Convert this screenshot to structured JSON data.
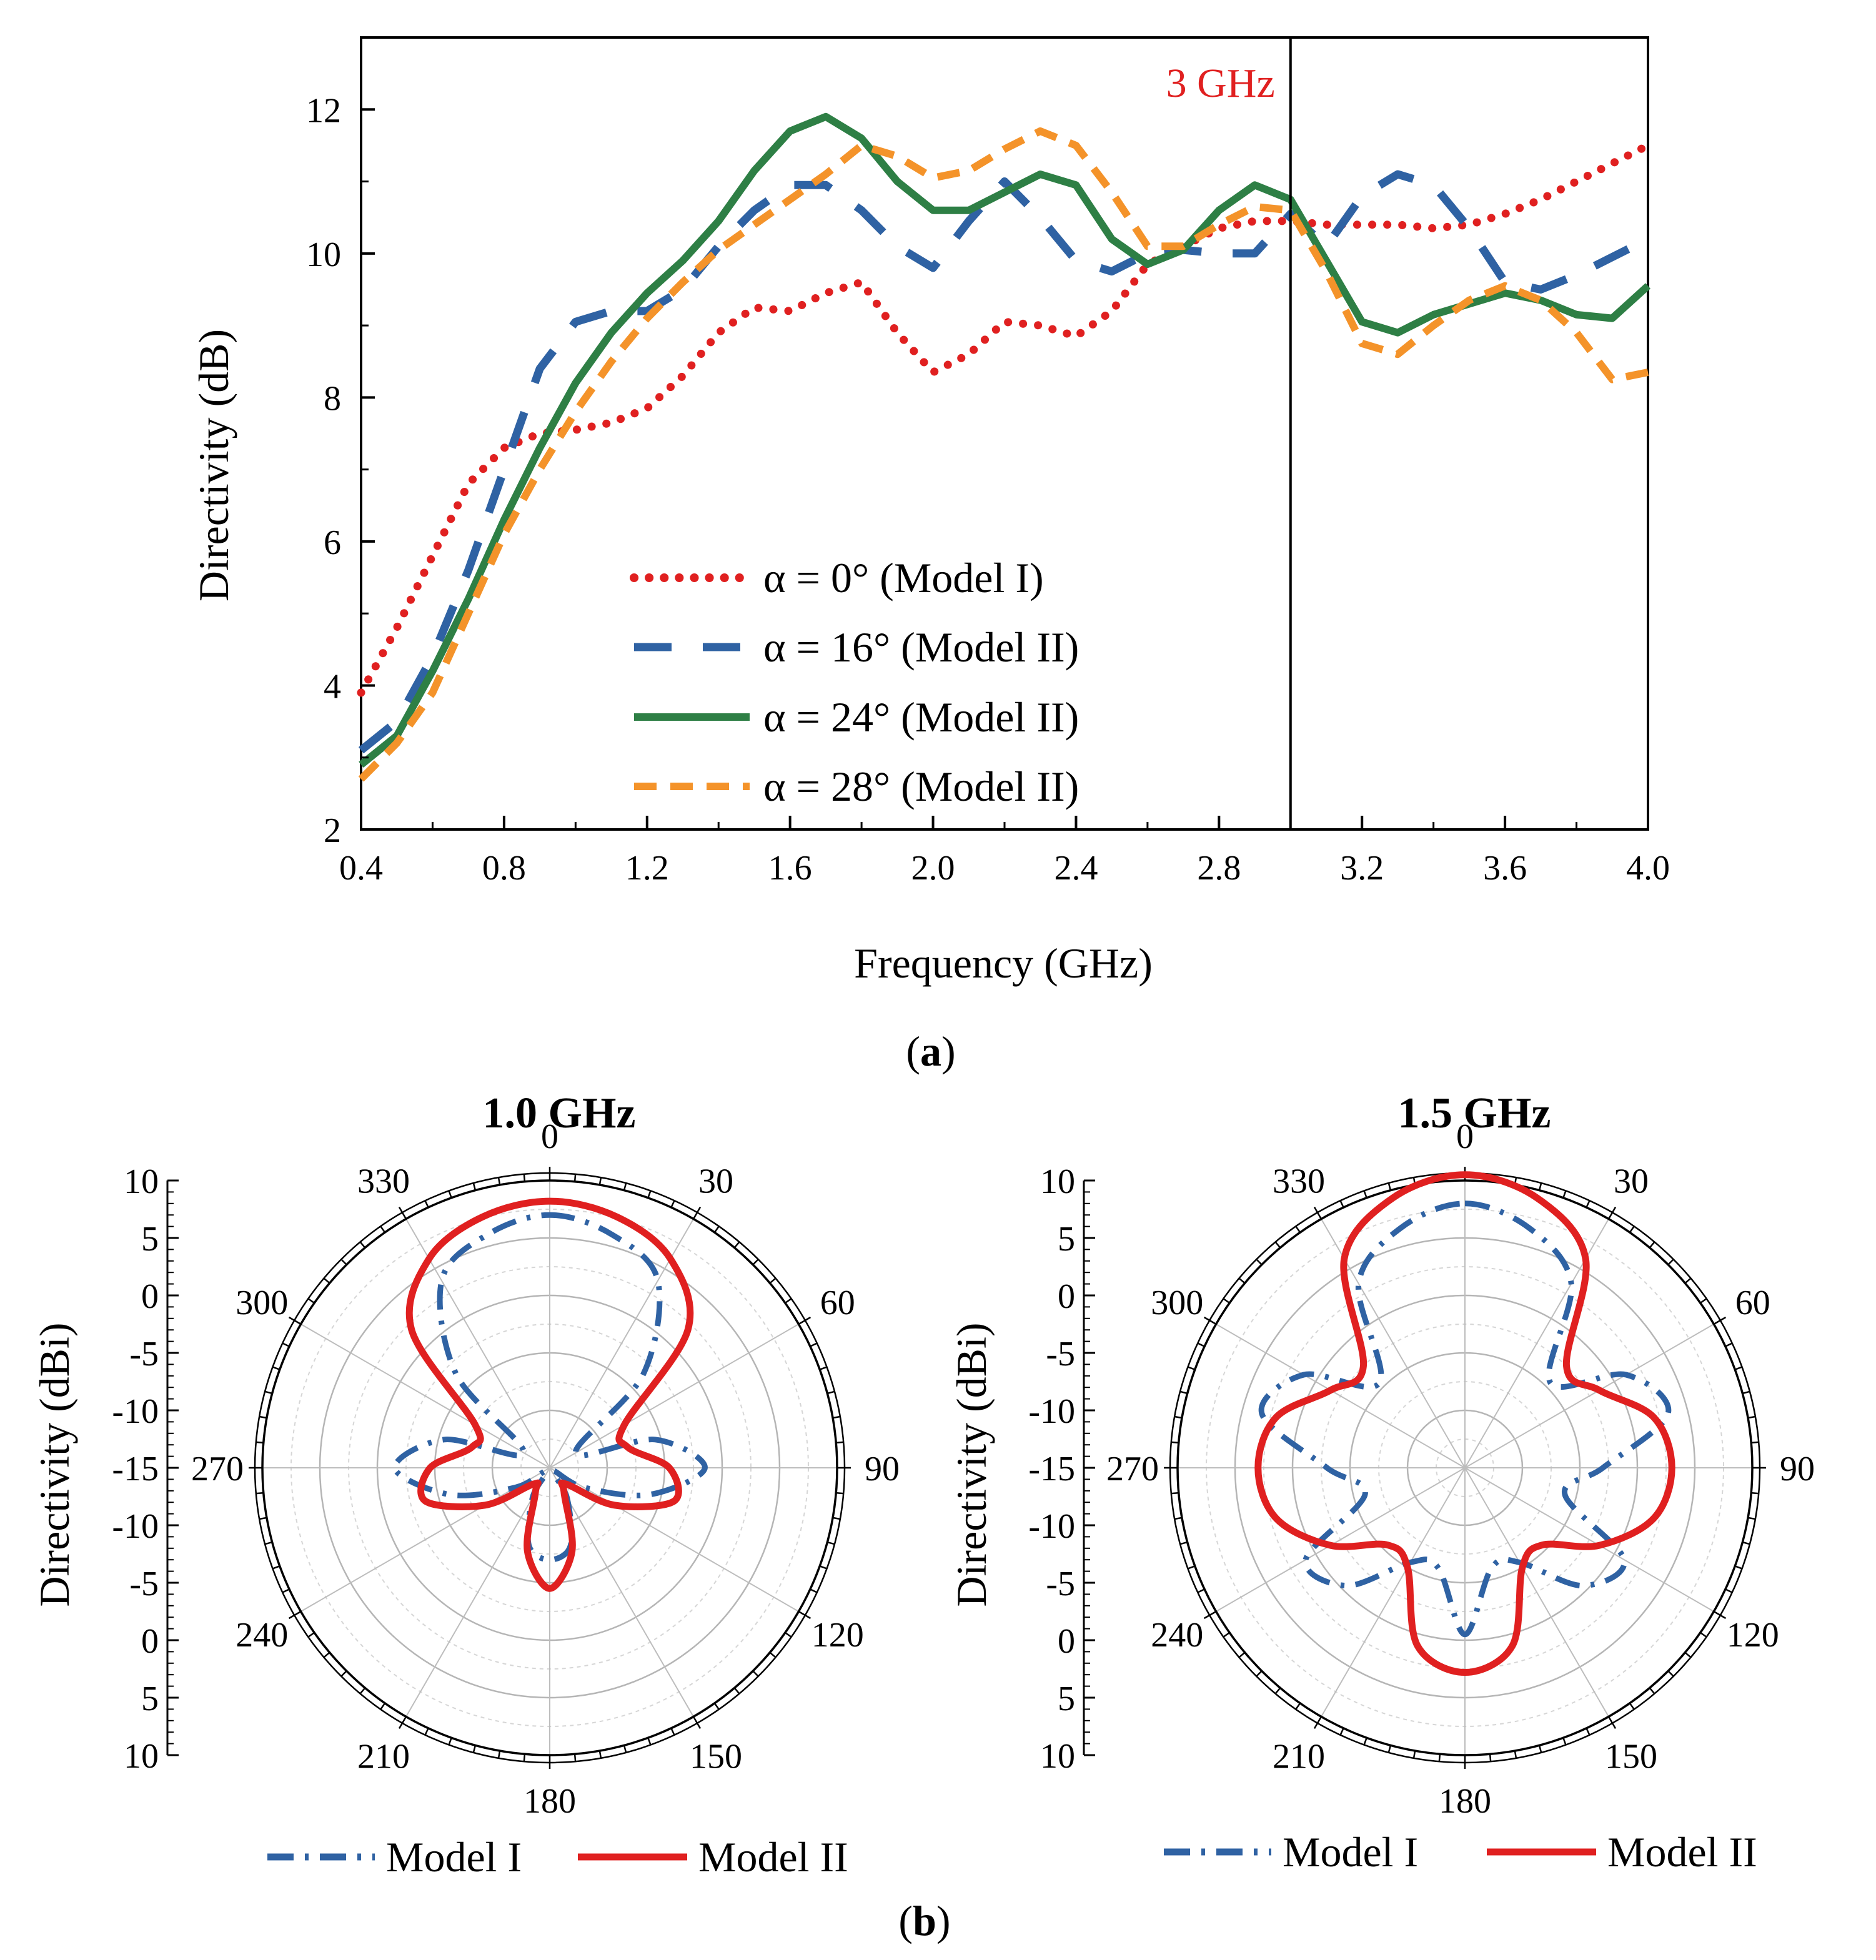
{
  "colors": {
    "red": "#e02020",
    "blue": "#2f62a3",
    "green": "#2e7f45",
    "orange": "#f4932a",
    "axis": "#000000",
    "grid": "#bbbbbb"
  },
  "captions": {
    "a": "a",
    "b": "b"
  },
  "chart_data": [
    {
      "type": "line",
      "id": "a",
      "xlabel": "Frequency (GHz)",
      "ylabel": "Directivity (dB)",
      "xlim": [
        0.4,
        4.0
      ],
      "ylim": [
        2,
        13
      ],
      "xticks": [
        "0.4",
        "0.8",
        "1.2",
        "1.6",
        "2.0",
        "2.4",
        "2.8",
        "3.2",
        "3.6",
        "4.0"
      ],
      "yticks": [
        "2",
        "4",
        "6",
        "8",
        "10",
        "12"
      ],
      "annotation": {
        "label": "3 GHz",
        "x": 3.0
      },
      "x": [
        0.4,
        0.5,
        0.6,
        0.7,
        0.8,
        0.9,
        1.0,
        1.1,
        1.2,
        1.3,
        1.4,
        1.5,
        1.6,
        1.7,
        1.8,
        1.9,
        2.0,
        2.1,
        2.2,
        2.3,
        2.4,
        2.5,
        2.6,
        2.7,
        2.8,
        2.9,
        3.0,
        3.1,
        3.2,
        3.3,
        3.4,
        3.5,
        3.6,
        3.7,
        3.8,
        3.9,
        4.0
      ],
      "series": [
        {
          "name": "α = 0° (Model I)",
          "color": "red",
          "dash": "dot",
          "values": [
            3.9,
            4.8,
            5.8,
            6.8,
            7.3,
            7.5,
            7.55,
            7.65,
            7.85,
            8.3,
            8.9,
            9.25,
            9.2,
            9.45,
            9.6,
            8.9,
            8.35,
            8.6,
            9.05,
            9.0,
            8.85,
            9.2,
            9.85,
            10.1,
            10.35,
            10.45,
            10.45,
            10.4,
            10.4,
            10.4,
            10.35,
            10.4,
            10.55,
            10.75,
            11.0,
            11.25,
            11.5
          ]
        },
        {
          "name": "α = 16° (Model II)",
          "color": "blue",
          "dash": "dash",
          "values": [
            3.1,
            3.5,
            4.4,
            5.6,
            7.0,
            8.4,
            9.05,
            9.2,
            9.2,
            9.5,
            10.1,
            10.6,
            10.95,
            10.95,
            10.6,
            10.1,
            9.8,
            10.45,
            11.0,
            10.5,
            9.9,
            9.75,
            10.0,
            10.05,
            10.0,
            10.0,
            10.55,
            10.1,
            10.8,
            11.1,
            10.95,
            10.35,
            9.6,
            9.5,
            9.7,
            9.95,
            10.2
          ]
        },
        {
          "name": "α = 24° (Model II)",
          "color": "green",
          "dash": "solid",
          "values": [
            2.9,
            3.3,
            4.2,
            5.2,
            6.3,
            7.3,
            8.2,
            8.9,
            9.45,
            9.9,
            10.45,
            11.15,
            11.7,
            11.9,
            11.6,
            11.0,
            10.6,
            10.6,
            10.85,
            11.1,
            10.95,
            10.2,
            9.85,
            10.05,
            10.6,
            10.95,
            10.75,
            9.9,
            9.05,
            8.9,
            9.15,
            9.3,
            9.45,
            9.35,
            9.15,
            9.1,
            9.55
          ]
        },
        {
          "name": "α = 28° (Model II)",
          "color": "orange",
          "dash": "dash",
          "values": [
            2.7,
            3.2,
            3.9,
            5.0,
            6.1,
            7.0,
            7.8,
            8.5,
            9.1,
            9.6,
            10.05,
            10.4,
            10.75,
            11.1,
            11.5,
            11.35,
            11.05,
            11.15,
            11.45,
            11.7,
            11.5,
            10.85,
            10.1,
            10.1,
            10.4,
            10.65,
            10.6,
            9.75,
            8.75,
            8.6,
            9.0,
            9.35,
            9.55,
            9.35,
            8.9,
            8.25,
            8.35
          ]
        }
      ]
    },
    {
      "type": "polar",
      "id": "b-left",
      "title": "1.0 GHz",
      "rlabel": "Directivity (dBi)",
      "rlim": [
        -15,
        10
      ],
      "rticks": [
        "10",
        "5",
        "0",
        "-5",
        "-10",
        "-15"
      ],
      "angles_labels": [
        "0",
        "30",
        "60",
        "90",
        "120",
        "150",
        "180",
        "210",
        "240",
        "270",
        "300",
        "330"
      ],
      "theta_deg": [
        0,
        15,
        30,
        45,
        60,
        75,
        90,
        105,
        120,
        135,
        150,
        165,
        180,
        195,
        210,
        225,
        240,
        255,
        270,
        285,
        300,
        315,
        330,
        345
      ],
      "series": [
        {
          "name": "Model I",
          "color": "blue",
          "dash": "dashdot",
          "values": [
            7.0,
            6.0,
            3.8,
            -3.5,
            -12.4,
            -5.5,
            -1.5,
            -6.0,
            -11.6,
            -14.6,
            -12.0,
            -8.0,
            -7.0,
            -8.0,
            -12.0,
            -14.6,
            -11.6,
            -6.0,
            -1.5,
            -5.5,
            -12.4,
            -3.5,
            3.8,
            6.0
          ]
        },
        {
          "name": "Model II",
          "color": "red",
          "dash": "solid",
          "values": [
            8.2,
            7.6,
            6.0,
            2.0,
            -7.5,
            -8.0,
            -4.6,
            -3.8,
            -8.5,
            -13.0,
            -12.5,
            -7.5,
            -4.5,
            -7.5,
            -12.5,
            -13.0,
            -8.5,
            -3.8,
            -4.6,
            -8.0,
            -7.5,
            2.0,
            6.0,
            7.6
          ]
        }
      ]
    },
    {
      "type": "polar",
      "id": "b-right",
      "title": "1.5 GHz",
      "rlabel": "Directivity (dBi)",
      "rlim": [
        -15,
        10
      ],
      "rticks": [
        "10",
        "5",
        "0",
        "-5",
        "-10",
        "-15"
      ],
      "angles_labels": [
        "0",
        "30",
        "60",
        "90",
        "120",
        "150",
        "180",
        "210",
        "240",
        "270",
        "300",
        "330"
      ],
      "theta_deg": [
        0,
        15,
        30,
        45,
        60,
        75,
        90,
        105,
        120,
        135,
        150,
        165,
        180,
        195,
        210,
        225,
        240,
        255,
        270,
        285,
        300,
        315,
        330,
        345
      ],
      "series": [
        {
          "name": "Model I",
          "color": "blue",
          "dash": "dashdot",
          "values": [
            8.0,
            6.6,
            3.5,
            -4.5,
            1.2,
            3.3,
            -3.0,
            -6.0,
            1.0,
            -0.5,
            -5.5,
            -6.0,
            -0.5,
            -6.0,
            -5.5,
            -0.5,
            1.0,
            -6.0,
            -3.0,
            3.3,
            1.2,
            -4.5,
            3.5,
            6.6
          ]
        },
        {
          "name": "Model II",
          "color": "red",
          "dash": "solid",
          "values": [
            10.5,
            9.3,
            6.0,
            -2.5,
            -1.5,
            2.0,
            3.0,
            2.0,
            -1.5,
            -5.5,
            -5.0,
            1.0,
            2.8,
            1.0,
            -5.0,
            -5.5,
            -1.5,
            2.0,
            3.0,
            2.0,
            -1.5,
            -2.5,
            6.0,
            9.3
          ]
        }
      ]
    }
  ]
}
